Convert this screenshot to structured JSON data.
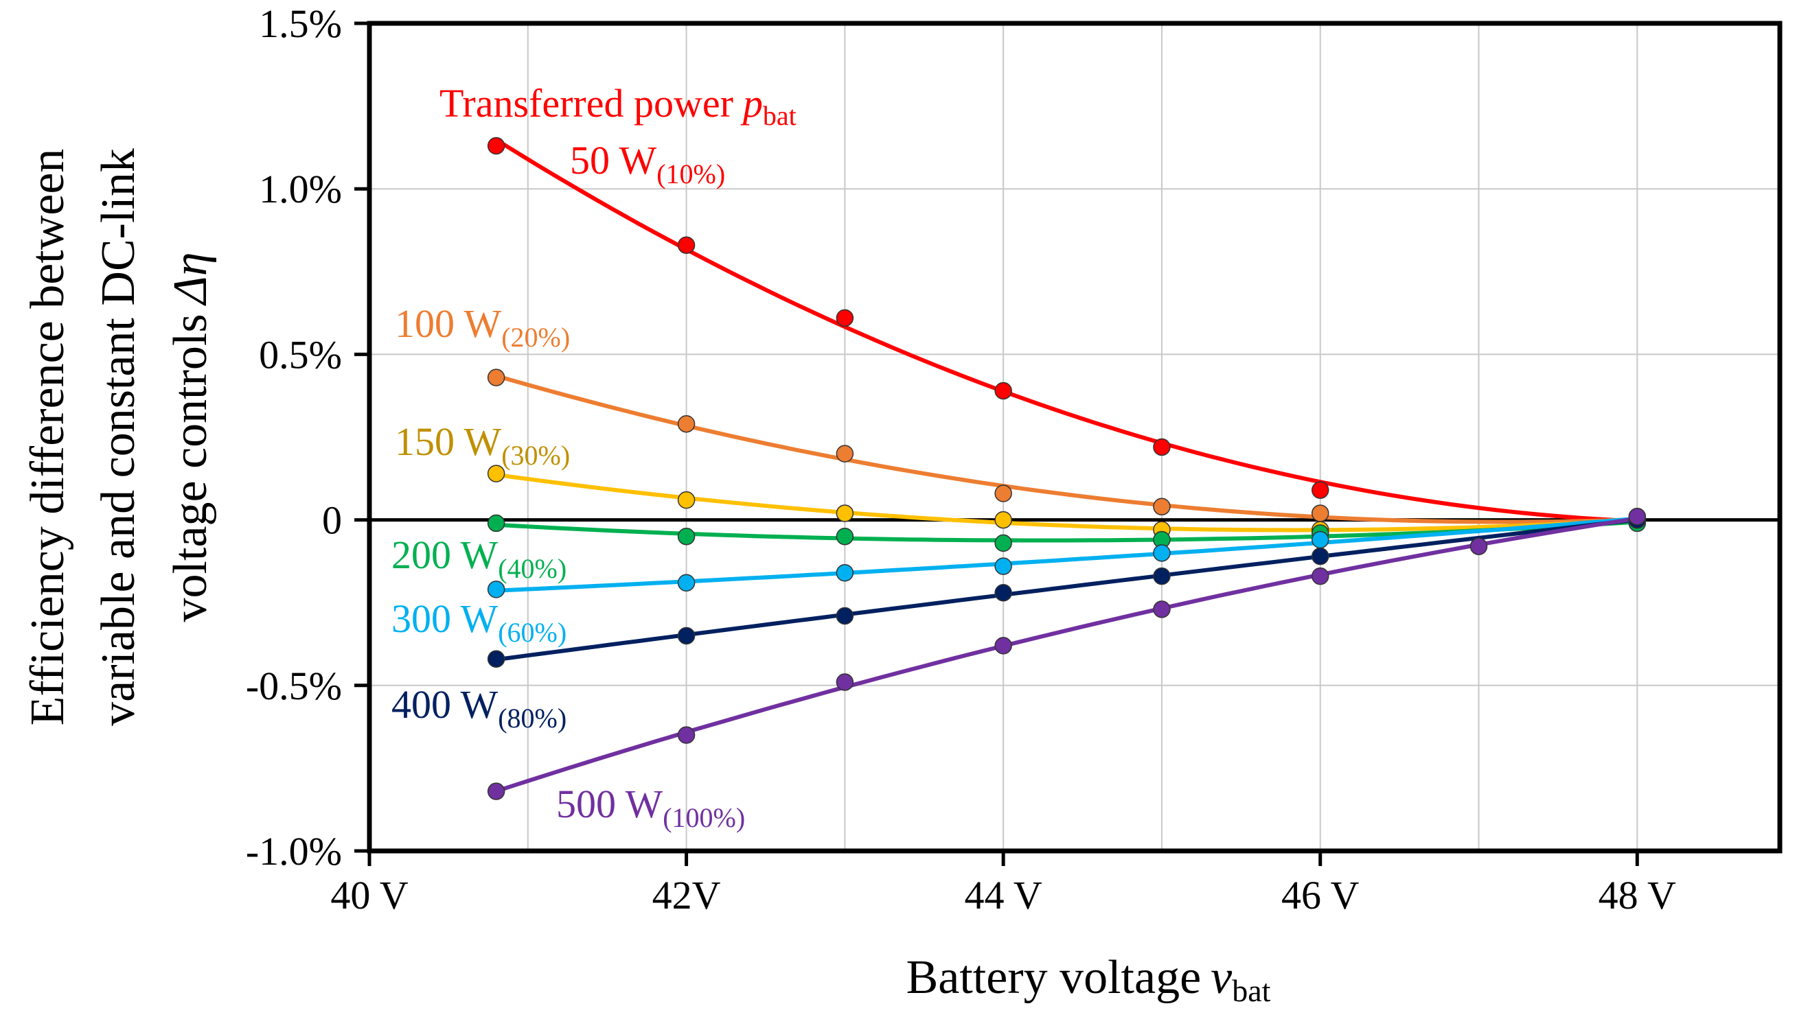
{
  "chart_data": {
    "type": "line",
    "title": "",
    "xlabel": "Battery voltage",
    "xlabel_var": "v",
    "xlabel_sub": "bat",
    "ylabel_line1": "Efficiency difference between",
    "ylabel_line2": "variable and constant DC-link",
    "ylabel_line3": "voltage controls",
    "ylabel_symbol": "Δη",
    "annotation": {
      "text": "Transferred power",
      "var": "p",
      "sub": "bat",
      "color": "#ff0000"
    },
    "xlim": [
      40,
      48.9
    ],
    "ylim": [
      -1.0,
      1.5
    ],
    "x_ticks": [
      {
        "value": 40,
        "label": "40 V"
      },
      {
        "value": 42,
        "label": "42V"
      },
      {
        "value": 44,
        "label": "44 V"
      },
      {
        "value": 46,
        "label": "46 V"
      },
      {
        "value": 48,
        "label": "48 V"
      }
    ],
    "y_ticks": [
      {
        "value": 1.5,
        "label": "1.5%"
      },
      {
        "value": 1.0,
        "label": "1.0%"
      },
      {
        "value": 0.5,
        "label": "0.5%"
      },
      {
        "value": 0,
        "label": "0"
      },
      {
        "value": -0.5,
        "label": "-0.5%"
      },
      {
        "value": -1.0,
        "label": "-1.0%"
      }
    ],
    "grid": true,
    "x": [
      40.8,
      42,
      43,
      44,
      45,
      46,
      47,
      48
    ],
    "series": [
      {
        "name": "50 W",
        "pct": "(10%)",
        "color": "#ff0000",
        "marker": "#ff0000",
        "values": [
          1.13,
          0.83,
          0.61,
          0.39,
          0.22,
          0.09,
          null,
          0.01
        ]
      },
      {
        "name": "100 W",
        "pct": "(20%)",
        "color": "#ed7d31",
        "marker": "#ed7d31",
        "values": [
          0.43,
          0.29,
          0.2,
          0.08,
          0.04,
          0.02,
          null,
          0.0
        ]
      },
      {
        "name": "150 W",
        "pct": "(30%)",
        "color": "#ffc000",
        "marker": "#ffc000",
        "label_color": "#bf9000",
        "values": [
          0.14,
          0.06,
          0.02,
          0.0,
          -0.03,
          -0.03,
          null,
          0.0
        ]
      },
      {
        "name": "200 W",
        "pct": "(40%)",
        "color": "#00b050",
        "marker": "#00b050",
        "values": [
          -0.01,
          -0.05,
          -0.05,
          -0.07,
          -0.06,
          -0.04,
          null,
          -0.01
        ]
      },
      {
        "name": "300 W",
        "pct": "(60%)",
        "color": "#00b0f0",
        "marker": "#00b0f0",
        "values": [
          -0.21,
          -0.19,
          -0.16,
          -0.14,
          -0.1,
          -0.06,
          null,
          0.0
        ]
      },
      {
        "name": "400 W",
        "pct": "(80%)",
        "color": "#002060",
        "marker": "#002060",
        "values": [
          -0.42,
          -0.35,
          -0.29,
          -0.22,
          -0.17,
          -0.11,
          null,
          0.0
        ]
      },
      {
        "name": "500 W",
        "pct": "(100%)",
        "color": "#7030a0",
        "marker": "#7030a0",
        "values": [
          -0.82,
          -0.65,
          -0.49,
          -0.38,
          -0.27,
          -0.17,
          -0.08,
          0.01
        ]
      }
    ]
  }
}
